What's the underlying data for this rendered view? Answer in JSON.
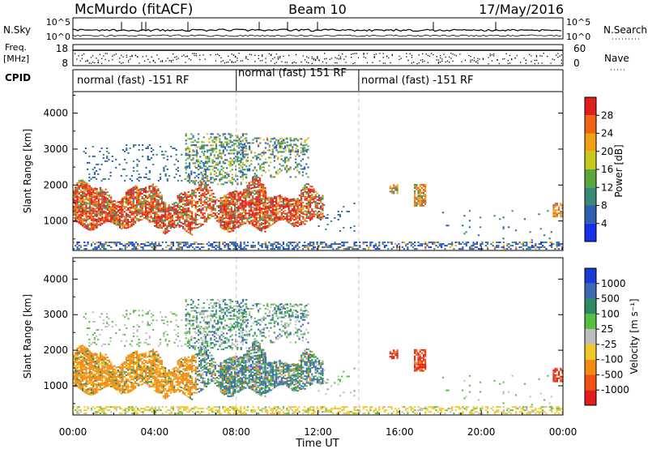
{
  "header": {
    "station": "McMurdo (fitACF)",
    "beam": "Beam 10",
    "date": "17/May/2016"
  },
  "summary_panels": {
    "nsky_label": "N.Sky",
    "nsky_ticks": [
      "10^5",
      "10^0"
    ],
    "nsky_right_ticks": [
      "10^5",
      "10^0"
    ],
    "nsearch_label": "N.Search",
    "freq_label_1": "Freq.",
    "freq_label_2": "[MHz]",
    "freq_ticks": [
      "18",
      "8"
    ],
    "nave_ticks": [
      "60",
      "0"
    ],
    "nave_label": "Nave",
    "cpid_label": "CPID",
    "cpid_segments": [
      {
        "label": "normal (fast) -151 RF",
        "start_h": 0,
        "end_h": 8
      },
      {
        "label": "normal (fast) 151 RF",
        "start_h": 8,
        "end_h": 14
      },
      {
        "label": "normal (fast) -151 RF",
        "start_h": 14,
        "end_h": 24
      }
    ]
  },
  "chart_data": [
    {
      "type": "heatmap",
      "name": "power-panel",
      "ylabel": "Slant Range [km]",
      "y_ticks": [
        "1000",
        "2000",
        "3000",
        "4000"
      ],
      "ylim": [
        180,
        4600
      ],
      "xlim_hours": [
        0,
        24
      ],
      "colorbar_label": "Power [dB]",
      "colorbar_ticks": [
        "4",
        "8",
        "12",
        "16",
        "20",
        "24",
        "28"
      ],
      "colorbar_range": [
        0,
        30
      ],
      "colors": [
        "#1530e8",
        "#2f5fb0",
        "#3a8a78",
        "#5aa83c",
        "#c8c81e",
        "#f0a014",
        "#f06414",
        "#e01e1e"
      ]
    },
    {
      "type": "heatmap",
      "name": "velocity-panel",
      "ylabel": "Slant Range [km]",
      "y_ticks": [
        "1000",
        "2000",
        "3000",
        "4000"
      ],
      "ylim": [
        180,
        4600
      ],
      "xlim_hours": [
        0,
        24
      ],
      "colorbar_label": "Velocity [m s⁻¹]",
      "colorbar_ticks": [
        "1000",
        "500",
        "100",
        "25",
        "-25",
        "-100",
        "-500",
        "-1000"
      ],
      "colors": [
        "#1a3cd2",
        "#3a6ab4",
        "#2f8a64",
        "#58c040",
        "#bebebe",
        "#f0c828",
        "#f08c14",
        "#f05014",
        "#e01e1e"
      ]
    }
  ],
  "x_axis": {
    "ticks": [
      "00:00",
      "04:00",
      "08:00",
      "12:00",
      "16:00",
      "20:00",
      "00:00"
    ],
    "label": "Time UT"
  }
}
